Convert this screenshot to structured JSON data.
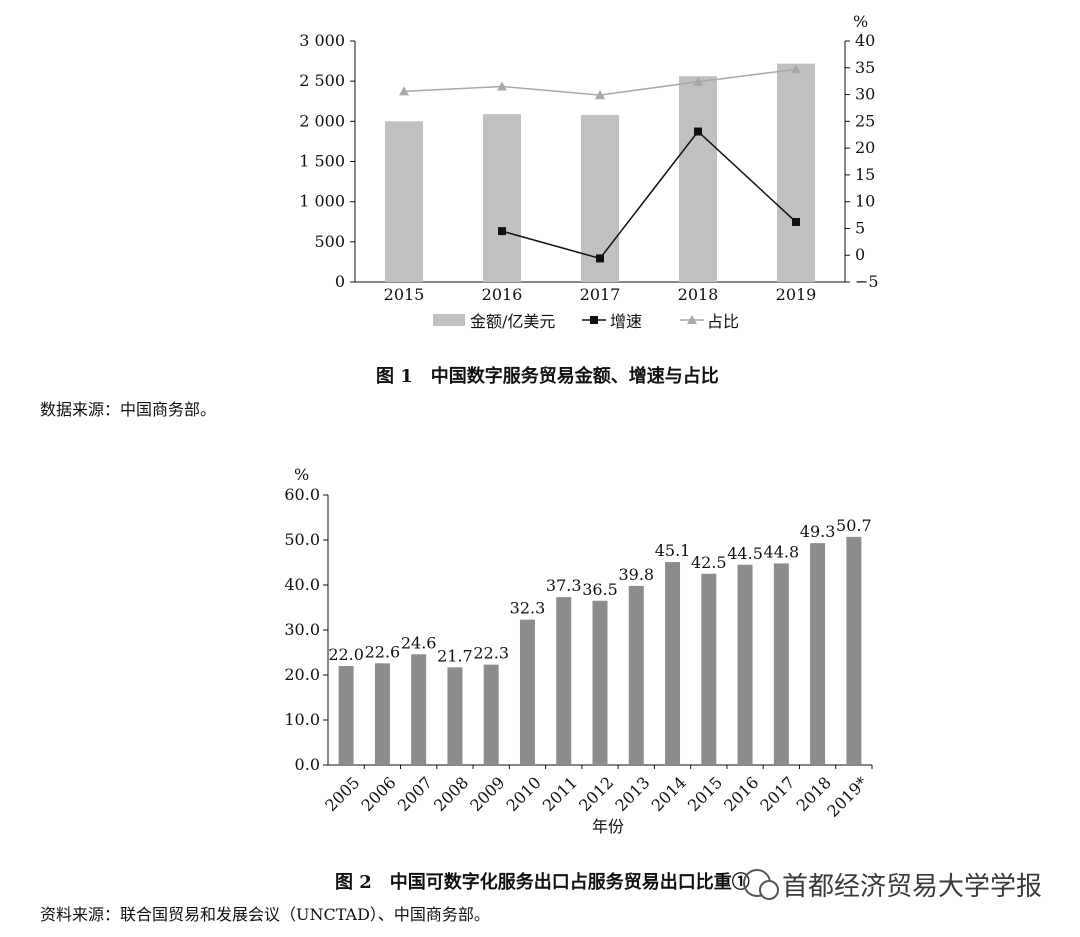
{
  "figure1": {
    "caption": "图 1　中国数字服务贸易金额、增速与占比",
    "source_note": "数据来源：中国商务部。",
    "y_right_unit": "%",
    "legend": [
      "金额/亿美元",
      "增速",
      "占比"
    ],
    "y_left_ticks": [
      "0",
      "500",
      "1 000",
      "1 500",
      "2 000",
      "2 500",
      "3 000"
    ],
    "y_right_ticks": [
      "−5",
      "0",
      "5",
      "10",
      "15",
      "20",
      "25",
      "30",
      "35",
      "40"
    ]
  },
  "figure2": {
    "caption": "图 2　中国可数字化服务出口占服务贸易出口比重①",
    "source_note": "资料来源：联合国贸易和发展会议（UNCTAD）、中国商务部。",
    "y_unit": "%",
    "x_title": "年份",
    "y_ticks": [
      "0.0",
      "10.0",
      "20.0",
      "30.0",
      "40.0",
      "50.0",
      "60.0"
    ]
  },
  "watermark": "首都经济贸易大学学报",
  "chart_data": [
    {
      "type": "bar",
      "categories": [
        "2015",
        "2016",
        "2017",
        "2018",
        "2019"
      ],
      "series": [
        {
          "name": "金额/亿美元",
          "type": "bar",
          "axis": "left",
          "values": [
            2000,
            2090,
            2080,
            2562,
            2718
          ]
        },
        {
          "name": "增速",
          "type": "line",
          "axis": "right",
          "values": [
            null,
            4.5,
            -0.6,
            23.1,
            6.2
          ]
        },
        {
          "name": "占比",
          "type": "line",
          "axis": "right",
          "values": [
            30.6,
            31.5,
            29.9,
            32.4,
            34.7
          ]
        }
      ],
      "ylim_left": [
        0,
        3000
      ],
      "ylim_right": [
        -5,
        40
      ],
      "colors": {
        "bar": "#c0c0c0",
        "growth": "#111111",
        "share": "#a8a8a8"
      }
    },
    {
      "type": "bar",
      "categories": [
        "2005",
        "2006",
        "2007",
        "2008",
        "2009",
        "2010",
        "2011",
        "2012",
        "2013",
        "2014",
        "2015",
        "2016",
        "2017",
        "2018",
        "2019*"
      ],
      "values": [
        22.0,
        22.6,
        24.6,
        21.7,
        22.3,
        32.3,
        37.3,
        36.5,
        39.8,
        45.1,
        42.5,
        44.5,
        44.8,
        49.3,
        50.7
      ],
      "value_labels": [
        "22.0",
        "22.6",
        "24.6",
        "21.7",
        "22.3",
        "32.3",
        "37.3",
        "36.5",
        "39.8",
        "45.1",
        "42.5",
        "44.5",
        "44.8",
        "49.3",
        "50.7"
      ],
      "ylim": [
        0,
        60
      ],
      "color": "#8c8c8c"
    }
  ]
}
